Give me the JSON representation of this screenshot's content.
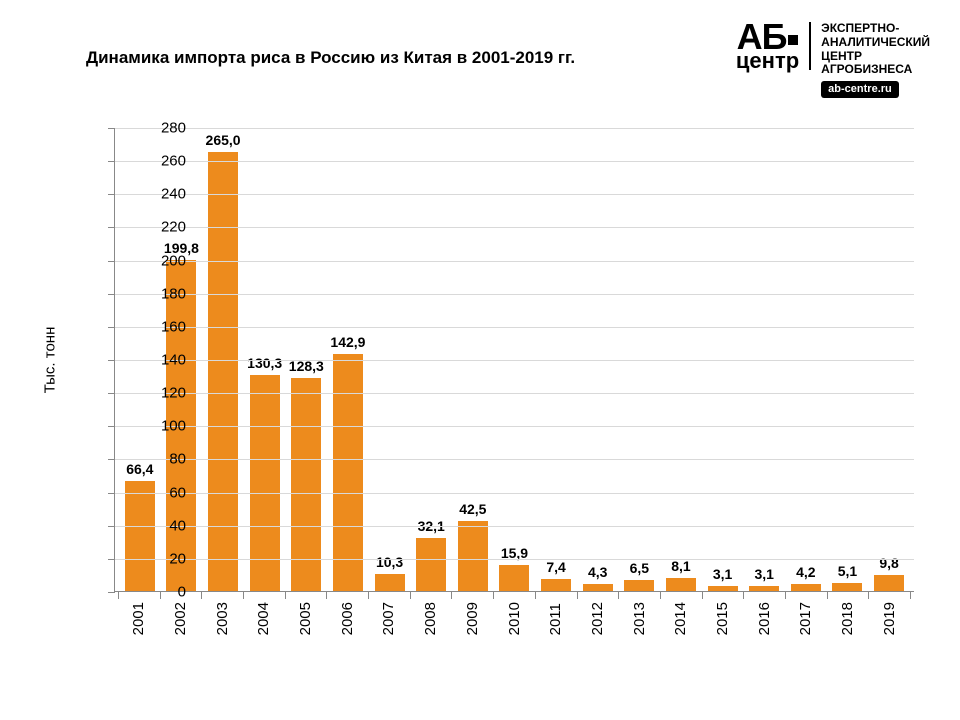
{
  "title": "Динамика импорта риса в Россию из Китая в 2001-2019 гг.",
  "logo": {
    "ab": "АБ",
    "centr": "центр",
    "line1": "ЭКСПЕРТНО-",
    "line2": "АНАЛИТИЧЕСКИЙ",
    "line3": "ЦЕНТР",
    "line4": "АГРОБИЗНЕСА",
    "url": "ab-centre.ru"
  },
  "chart": {
    "type": "bar",
    "ylabel": "Тыс. тонн",
    "ylim": [
      0,
      280
    ],
    "ytick_step": 20,
    "bar_color": "#ed8b1d",
    "grid_color": "#d9d9d9",
    "axis_color": "#888888",
    "background_color": "#ffffff",
    "title_fontsize": 17,
    "label_fontsize": 14,
    "axis_fontsize": 15,
    "value_fontsize": 14,
    "bar_width": 0.72,
    "categories": [
      "2001",
      "2002",
      "2003",
      "2004",
      "2005",
      "2006",
      "2007",
      "2008",
      "2009",
      "2010",
      "2011",
      "2012",
      "2013",
      "2014",
      "2015",
      "2016",
      "2017",
      "2018",
      "2019"
    ],
    "values": [
      66.4,
      199.8,
      265.0,
      130.3,
      128.3,
      142.9,
      10.3,
      32.1,
      42.5,
      15.9,
      7.4,
      4.3,
      6.5,
      8.1,
      3.1,
      3.1,
      4.2,
      5.1,
      9.8
    ],
    "value_labels": [
      "66,4",
      "199,8",
      "265,0",
      "130,3",
      "128,3",
      "142,9",
      "10,3",
      "32,1",
      "42,5",
      "15,9",
      "7,4",
      "4,3",
      "6,5",
      "8,1",
      "3,1",
      "3,1",
      "4,2",
      "5,1",
      "9,8"
    ]
  }
}
